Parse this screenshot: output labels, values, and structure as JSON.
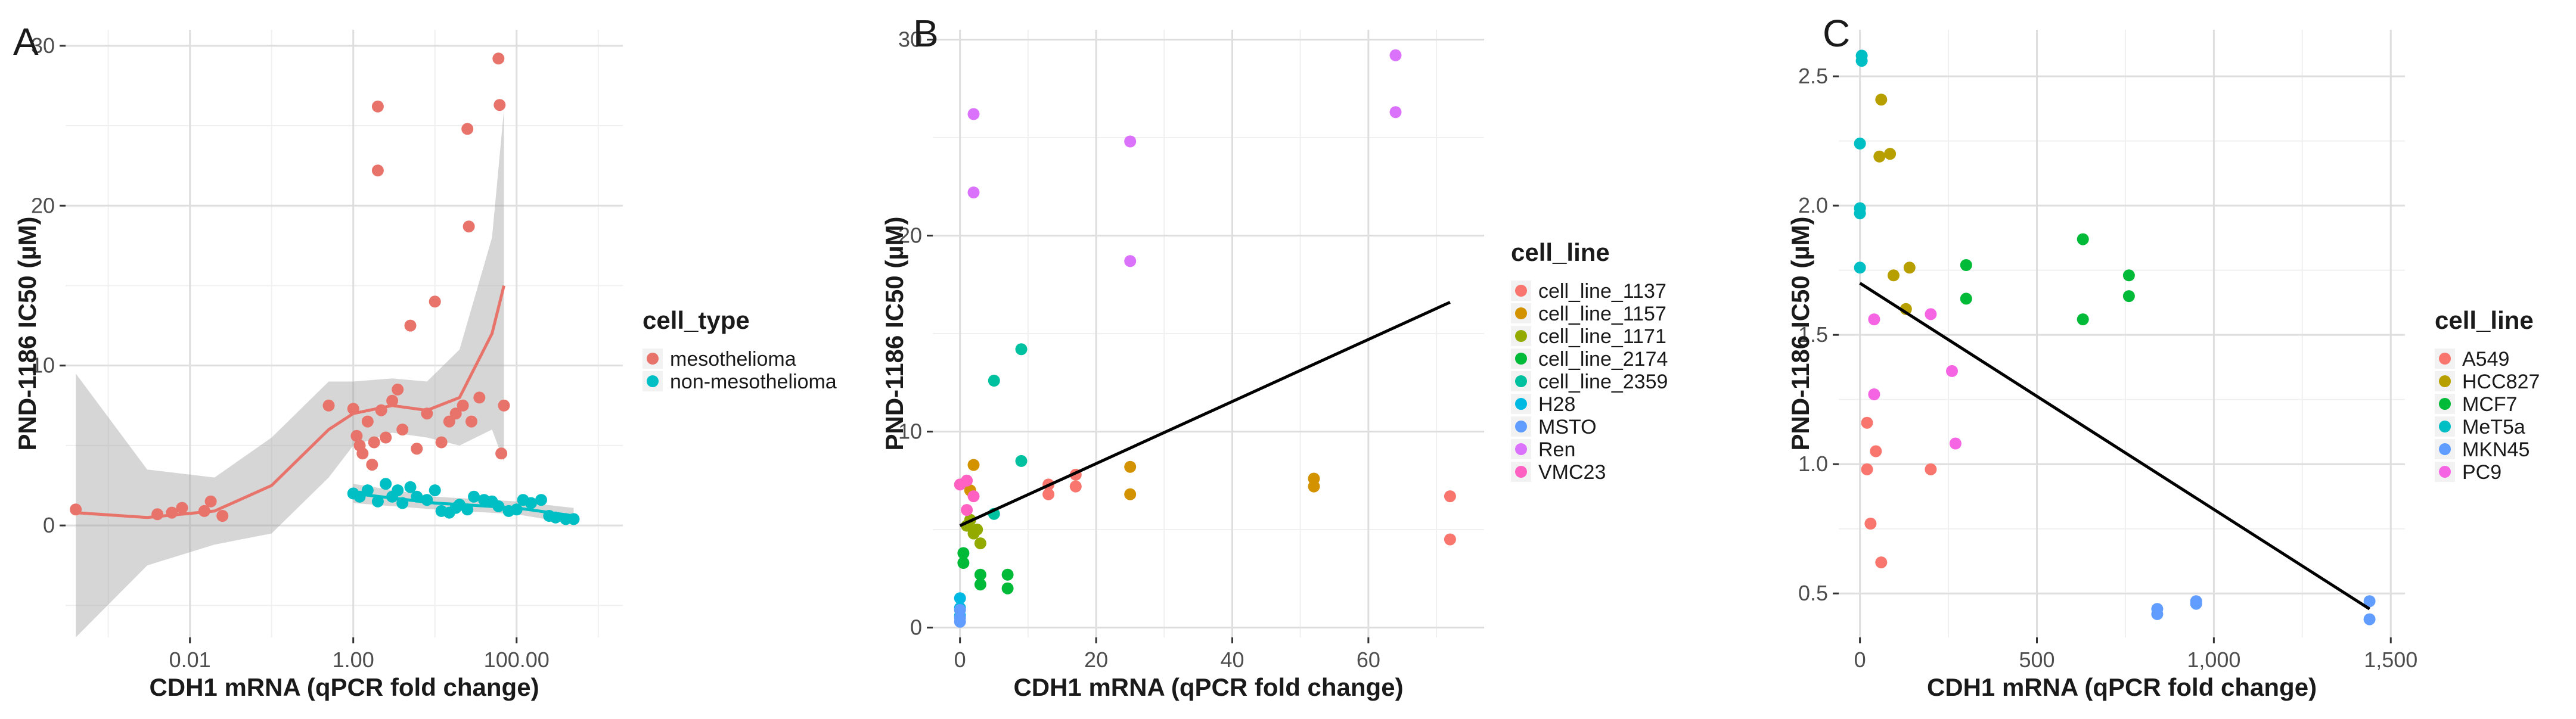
{
  "chart_data": [
    {
      "type": "scatter",
      "panel_label": "A",
      "xlabel": "CDH1 mRNA (qPCR fold change)",
      "ylabel": "PND-1186 IC50 (µM)",
      "x_scale": "log10",
      "xlim": [
        0.0003,
        2000
      ],
      "ylim": [
        -7,
        31
      ],
      "x_ticks": [
        {
          "value": 0.01,
          "label": "0.01"
        },
        {
          "value": 1,
          "label": "1.00"
        },
        {
          "value": 100,
          "label": "100.00"
        }
      ],
      "y_ticks": [
        {
          "value": 0,
          "label": "0"
        },
        {
          "value": 10,
          "label": "10"
        },
        {
          "value": 20,
          "label": "20"
        },
        {
          "value": 30,
          "label": "30"
        }
      ],
      "grid": true,
      "legend": {
        "title": "cell_type",
        "position": "right"
      },
      "series": [
        {
          "name": "mesothelioma",
          "color": "#E8736B",
          "points": [
            [
              0.0004,
              1.0
            ],
            [
              0.004,
              0.7
            ],
            [
              0.006,
              0.8
            ],
            [
              0.008,
              1.1
            ],
            [
              0.015,
              0.9
            ],
            [
              0.018,
              1.5
            ],
            [
              0.025,
              0.6
            ],
            [
              0.5,
              7.5
            ],
            [
              1.0,
              7.3
            ],
            [
              1.1,
              5.6
            ],
            [
              1.2,
              5.0
            ],
            [
              1.3,
              4.5
            ],
            [
              1.5,
              6.5
            ],
            [
              1.7,
              3.8
            ],
            [
              1.8,
              5.2
            ],
            [
              2.0,
              26.2
            ],
            [
              2.0,
              22.2
            ],
            [
              2.2,
              7.2
            ],
            [
              2.5,
              5.5
            ],
            [
              3.0,
              7.8
            ],
            [
              3.5,
              8.5
            ],
            [
              4.0,
              6.0
            ],
            [
              5.0,
              12.5
            ],
            [
              6.0,
              4.8
            ],
            [
              8.0,
              7.0
            ],
            [
              10.0,
              14.0
            ],
            [
              12.0,
              5.2
            ],
            [
              15.0,
              6.5
            ],
            [
              18.0,
              7.0
            ],
            [
              22.0,
              7.5
            ],
            [
              25.0,
              24.8
            ],
            [
              26.0,
              18.7
            ],
            [
              28.0,
              6.5
            ],
            [
              35.0,
              8.0
            ],
            [
              60.0,
              29.2
            ],
            [
              62.0,
              26.3
            ],
            [
              65.0,
              4.5
            ],
            [
              70.0,
              7.5
            ]
          ],
          "trend": {
            "x": [
              0.0004,
              0.003,
              0.02,
              0.1,
              0.5,
              1,
              3,
              8,
              20,
              50,
              70
            ],
            "y": [
              0.8,
              0.5,
              0.9,
              2.5,
              6.0,
              7.0,
              7.5,
              7.2,
              8.0,
              12.0,
              15.0
            ]
          },
          "band": {
            "x": [
              0.0004,
              0.003,
              0.02,
              0.1,
              0.5,
              1,
              3,
              8,
              20,
              50,
              70
            ],
            "lower": [
              -7.0,
              -2.5,
              -1.2,
              -0.5,
              3.0,
              5.0,
              5.8,
              5.5,
              5.0,
              6.0,
              4.0
            ],
            "upper": [
              9.5,
              3.5,
              3.0,
              5.5,
              9.0,
              9.0,
              9.2,
              9.0,
              11.0,
              18.0,
              26.0
            ]
          }
        },
        {
          "name": "non-mesothelioma",
          "color": "#00BFC4",
          "points": [
            [
              1.0,
              2.0
            ],
            [
              1.2,
              1.8
            ],
            [
              1.5,
              2.2
            ],
            [
              2.0,
              1.5
            ],
            [
              2.5,
              2.6
            ],
            [
              3.0,
              1.8
            ],
            [
              3.5,
              2.2
            ],
            [
              4.0,
              1.4
            ],
            [
              5.0,
              2.4
            ],
            [
              6.0,
              1.8
            ],
            [
              8.0,
              1.6
            ],
            [
              10.0,
              2.2
            ],
            [
              12.0,
              0.9
            ],
            [
              15.0,
              0.8
            ],
            [
              18.0,
              1.1
            ],
            [
              20.0,
              1.3
            ],
            [
              25.0,
              1.0
            ],
            [
              30.0,
              1.8
            ],
            [
              40.0,
              1.6
            ],
            [
              50.0,
              1.5
            ],
            [
              60.0,
              1.2
            ],
            [
              80.0,
              0.9
            ],
            [
              100.0,
              1.0
            ],
            [
              120.0,
              1.6
            ],
            [
              150.0,
              1.4
            ],
            [
              200.0,
              1.6
            ],
            [
              250.0,
              0.6
            ],
            [
              300.0,
              0.5
            ],
            [
              400.0,
              0.4
            ],
            [
              500.0,
              0.4
            ]
          ],
          "trend": {
            "x": [
              1,
              10,
              100,
              500
            ],
            "y": [
              2.0,
              1.4,
              1.1,
              0.6
            ]
          },
          "band": {
            "x": [
              1,
              10,
              100,
              500
            ],
            "lower": [
              1.4,
              1.0,
              0.7,
              0.1
            ],
            "upper": [
              2.6,
              1.8,
              1.5,
              1.1
            ]
          }
        }
      ]
    },
    {
      "type": "scatter",
      "panel_label": "B",
      "xlabel": "CDH1 mRNA (qPCR fold change)",
      "ylabel": "PND-1186 IC50 (µM)",
      "xlim": [
        -4,
        77
      ],
      "ylim": [
        -0.5,
        30.5
      ],
      "x_ticks": [
        {
          "value": 0,
          "label": "0"
        },
        {
          "value": 20,
          "label": "20"
        },
        {
          "value": 40,
          "label": "40"
        },
        {
          "value": 60,
          "label": "60"
        }
      ],
      "y_ticks": [
        {
          "value": 0,
          "label": "0"
        },
        {
          "value": 10,
          "label": "10"
        },
        {
          "value": 20,
          "label": "20"
        },
        {
          "value": 30,
          "label": "30"
        }
      ],
      "grid": true,
      "legend": {
        "title": "cell_line",
        "position": "right"
      },
      "fit_line": {
        "x": [
          0,
          72
        ],
        "y": [
          5.2,
          16.6
        ]
      },
      "series": [
        {
          "name": "cell_line_1137",
          "color": "#F8766D",
          "points": [
            [
              13,
              6.8
            ],
            [
              13,
              7.3
            ],
            [
              17,
              7.2
            ],
            [
              17,
              7.8
            ],
            [
              72,
              4.5
            ],
            [
              72,
              6.7
            ]
          ]
        },
        {
          "name": "cell_line_1157",
          "color": "#D39200",
          "points": [
            [
              2,
              8.3
            ],
            [
              25,
              8.2
            ],
            [
              25,
              6.8
            ],
            [
              52,
              7.2
            ],
            [
              52,
              7.6
            ],
            [
              1.5,
              7.0
            ]
          ]
        },
        {
          "name": "cell_line_1171",
          "color": "#93AA00",
          "points": [
            [
              1,
              5.2
            ],
            [
              2,
              4.8
            ],
            [
              3,
              4.3
            ],
            [
              1.5,
              5.5
            ],
            [
              2.5,
              5.0
            ]
          ]
        },
        {
          "name": "cell_line_2174",
          "color": "#00BA38",
          "points": [
            [
              0.5,
              3.3
            ],
            [
              0.5,
              3.8
            ],
            [
              3,
              2.7
            ],
            [
              3,
              2.2
            ],
            [
              7,
              2.7
            ],
            [
              7,
              2.0
            ]
          ]
        },
        {
          "name": "cell_line_2359",
          "color": "#00C19F",
          "points": [
            [
              9,
              14.2
            ],
            [
              5,
              12.6
            ],
            [
              9,
              8.5
            ],
            [
              5,
              5.8
            ]
          ]
        },
        {
          "name": "H28",
          "color": "#00B9E3",
          "points": [
            [
              0,
              1.5
            ],
            [
              0,
              1.0
            ],
            [
              0,
              0.6
            ]
          ]
        },
        {
          "name": "MSTO",
          "color": "#619CFF",
          "points": [
            [
              0,
              0.9
            ],
            [
              0,
              0.5
            ],
            [
              0,
              0.3
            ]
          ]
        },
        {
          "name": "Ren",
          "color": "#DB72FB",
          "points": [
            [
              2,
              26.2
            ],
            [
              2,
              22.2
            ],
            [
              25,
              24.8
            ],
            [
              25,
              18.7
            ],
            [
              64,
              29.2
            ],
            [
              64,
              26.3
            ]
          ]
        },
        {
          "name": "VMC23",
          "color": "#FF61C3",
          "points": [
            [
              0,
              7.3
            ],
            [
              1,
              7.5
            ],
            [
              1,
              6.0
            ],
            [
              2,
              6.7
            ]
          ]
        }
      ]
    },
    {
      "type": "scatter",
      "panel_label": "C",
      "xlabel": "CDH1 mRNA (qPCR fold change)",
      "ylabel": "PND-1186 IC50 (µM)",
      "xlim": [
        -60,
        1540
      ],
      "ylim": [
        0.33,
        2.68
      ],
      "x_ticks": [
        {
          "value": 0,
          "label": "0"
        },
        {
          "value": 500,
          "label": "500"
        },
        {
          "value": 1000,
          "label": "1,000"
        },
        {
          "value": 1500,
          "label": "1,500"
        }
      ],
      "y_ticks": [
        {
          "value": 0.5,
          "label": "0.5"
        },
        {
          "value": 1.0,
          "label": "1.0"
        },
        {
          "value": 1.5,
          "label": "1.5"
        },
        {
          "value": 2.0,
          "label": "2.0"
        },
        {
          "value": 2.5,
          "label": "2.5"
        }
      ],
      "grid": true,
      "legend": {
        "title": "cell_line",
        "position": "right"
      },
      "fit_line": {
        "x": [
          0,
          1440
        ],
        "y": [
          1.7,
          0.44
        ]
      },
      "series": [
        {
          "name": "A549",
          "color": "#F8766D",
          "points": [
            [
              20,
              1.16
            ],
            [
              20,
              0.98
            ],
            [
              30,
              0.77
            ],
            [
              45,
              1.05
            ],
            [
              60,
              0.62
            ],
            [
              200,
              0.98
            ]
          ]
        },
        {
          "name": "HCC827",
          "color": "#B79F00",
          "points": [
            [
              60,
              2.41
            ],
            [
              55,
              2.19
            ],
            [
              85,
              2.2
            ],
            [
              95,
              1.73
            ],
            [
              140,
              1.76
            ],
            [
              130,
              1.6
            ]
          ]
        },
        {
          "name": "MCF7",
          "color": "#00BA38",
          "points": [
            [
              300,
              1.77
            ],
            [
              300,
              1.64
            ],
            [
              630,
              1.87
            ],
            [
              630,
              1.56
            ],
            [
              760,
              1.73
            ],
            [
              760,
              1.65
            ]
          ]
        },
        {
          "name": "MeT5a",
          "color": "#00BFC4",
          "points": [
            [
              5,
              2.58
            ],
            [
              5,
              2.56
            ],
            [
              0,
              2.24
            ],
            [
              0,
              1.99
            ],
            [
              0,
              1.97
            ],
            [
              0,
              1.76
            ]
          ]
        },
        {
          "name": "MKN45",
          "color": "#619CFF",
          "points": [
            [
              840,
              0.44
            ],
            [
              840,
              0.42
            ],
            [
              950,
              0.47
            ],
            [
              950,
              0.46
            ],
            [
              1440,
              0.47
            ],
            [
              1440,
              0.4
            ]
          ]
        },
        {
          "name": "PC9",
          "color": "#F564E3",
          "points": [
            [
              40,
              1.56
            ],
            [
              40,
              1.27
            ],
            [
              200,
              1.58
            ],
            [
              260,
              1.36
            ],
            [
              270,
              1.08
            ]
          ]
        }
      ]
    }
  ]
}
